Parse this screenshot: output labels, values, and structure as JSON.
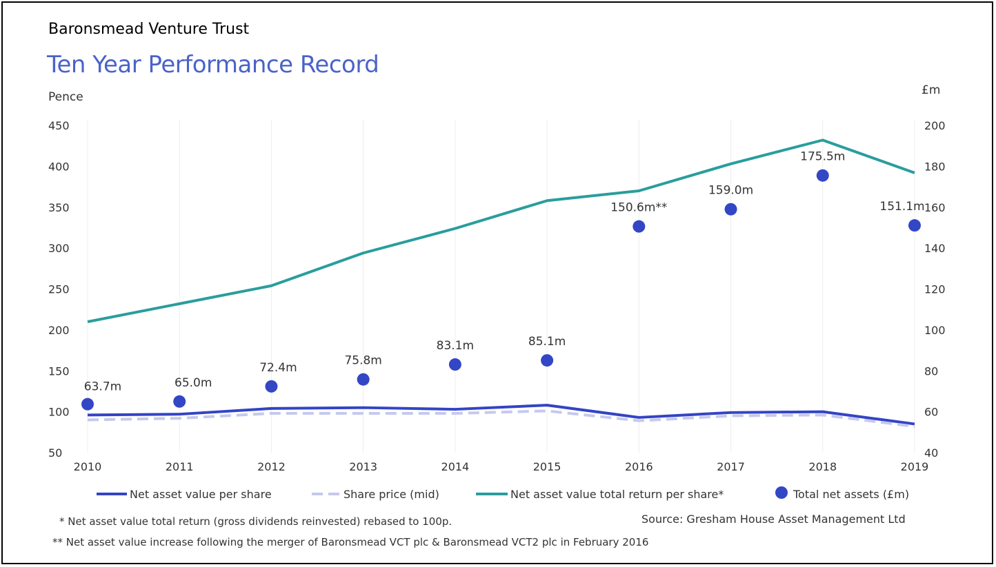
{
  "header": {
    "company": "Baronsmead Venture Trust",
    "title": "Ten Year Performance Record"
  },
  "notes": {
    "note1": "* Net asset value total return (gross dividends reinvested) rebased to 100p.",
    "note2": "** Net asset value increase following the merger of Baronsmead VCT plc & Baronsmead VCT2 plc in February 2016",
    "source": "Source: Gresham House Asset Management Ltd"
  },
  "colors": {
    "nav": "#3344c4",
    "share_price": "#c5c9ee",
    "total_return": "#2a9d9d",
    "net_assets": "#3346c6"
  },
  "chart_data": {
    "type": "line",
    "x": [
      "2010",
      "2011",
      "2012",
      "2013",
      "2014",
      "2015",
      "2016",
      "2017",
      "2018",
      "2019"
    ],
    "left_axis": {
      "unit": "Pence",
      "ylim": [
        50,
        450
      ],
      "ticks": [
        50,
        100,
        150,
        200,
        250,
        300,
        350,
        400,
        450
      ]
    },
    "right_axis": {
      "unit": "£m",
      "ylim": [
        40,
        200
      ],
      "ticks": [
        40,
        60,
        80,
        100,
        120,
        140,
        160,
        180,
        200
      ]
    },
    "series": [
      {
        "name": "Net asset value per share",
        "axis": "left",
        "style": "solid",
        "values": [
          96,
          97,
          104,
          105,
          103,
          108,
          93,
          99,
          100,
          85
        ]
      },
      {
        "name": "Share price (mid)",
        "axis": "left",
        "style": "dashed",
        "values": [
          90,
          92,
          98,
          98,
          98,
          101,
          89,
          95,
          96,
          82
        ]
      },
      {
        "name": "Net asset value total return per share*",
        "axis": "left",
        "style": "solid",
        "values": [
          210,
          232,
          254,
          294,
          324,
          358,
          370,
          403,
          432,
          392
        ]
      },
      {
        "name": "Total net assets (£m)",
        "axis": "right",
        "style": "dot",
        "values": [
          63.7,
          65.0,
          72.4,
          75.8,
          83.1,
          85.1,
          150.6,
          159.0,
          175.5,
          151.1
        ],
        "labels": [
          "63.7m",
          "65.0m",
          "72.4m",
          "75.8m",
          "83.1m",
          "85.1m",
          "150.6m**",
          "159.0m",
          "175.5m",
          "151.1m"
        ]
      }
    ],
    "legend_position": "bottom",
    "grid": "vertical"
  }
}
